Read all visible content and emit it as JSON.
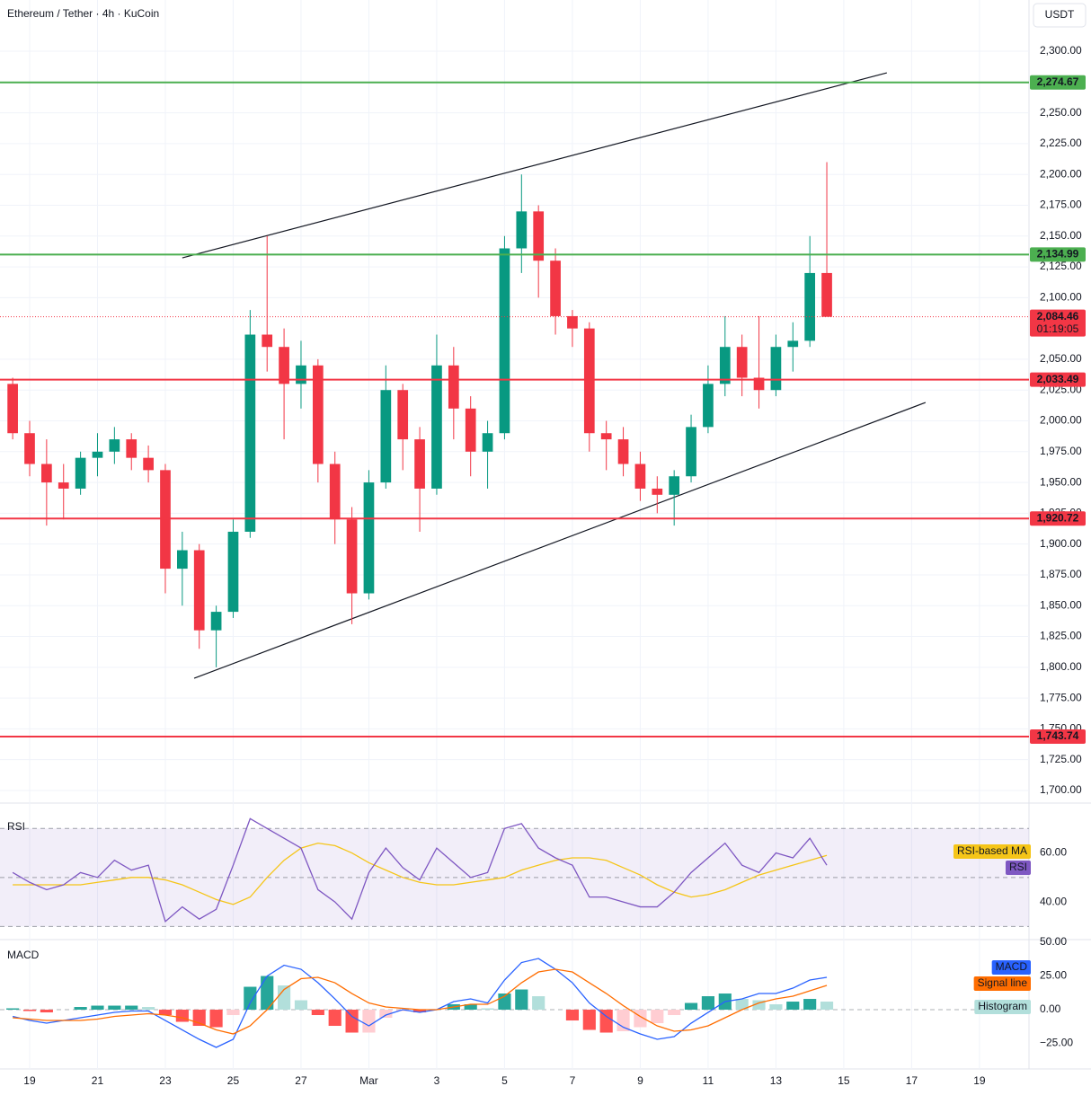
{
  "chart_data": [
    {
      "type": "candlestick",
      "title": "Ethereum / Tether · 4h · KuCoin",
      "currency": "USDT",
      "up_color": "#089981",
      "down_color": "#f23645",
      "x": [
        -0.5,
        0,
        0.5,
        1,
        1.5,
        2,
        2.5,
        3,
        3.5,
        4,
        4.5,
        5,
        5.5,
        6,
        6.5,
        7,
        7.5,
        8,
        8.5,
        9,
        9.5,
        10,
        10.5,
        11,
        11.5,
        12,
        12.5,
        13,
        13.5,
        14,
        14.5,
        15,
        15.5,
        16,
        16.5,
        17,
        17.5,
        18,
        18.5,
        19,
        19.5,
        20,
        20.5,
        21,
        21.5,
        22,
        22.5,
        23,
        23.5
      ],
      "open": [
        2030,
        1990,
        1965,
        1950,
        1945,
        1970,
        1975,
        1985,
        1970,
        1960,
        1880,
        1895,
        1830,
        1845,
        1910,
        2070,
        2060,
        2030,
        2045,
        1965,
        1920,
        1860,
        1950,
        2025,
        1985,
        1945,
        2045,
        2010,
        1975,
        1990,
        2140,
        2170,
        2130,
        2085,
        2075,
        1990,
        1985,
        1965,
        1945,
        1940,
        1955,
        1995,
        2030,
        2060,
        2035,
        2025,
        2060,
        2065,
        2120
      ],
      "high": [
        2035,
        2000,
        1985,
        1965,
        1975,
        1990,
        1995,
        1990,
        1980,
        1965,
        1910,
        1900,
        1850,
        1920,
        2090,
        2150,
        2075,
        2065,
        2050,
        1975,
        1930,
        1960,
        2045,
        2030,
        1995,
        2070,
        2060,
        2020,
        2000,
        2150,
        2200,
        2175,
        2140,
        2090,
        2080,
        2000,
        1995,
        1975,
        1955,
        1960,
        2005,
        2045,
        2085,
        2070,
        2085,
        2070,
        2080,
        2150,
        2210
      ],
      "low": [
        1985,
        1955,
        1915,
        1920,
        1940,
        1955,
        1965,
        1960,
        1950,
        1860,
        1850,
        1815,
        1800,
        1840,
        1905,
        2040,
        1985,
        2010,
        1950,
        1900,
        1835,
        1855,
        1945,
        1960,
        1910,
        1940,
        1985,
        1955,
        1945,
        1985,
        2120,
        2100,
        2070,
        2060,
        1975,
        1960,
        1955,
        1935,
        1925,
        1915,
        1950,
        1990,
        2020,
        2020,
        2010,
        2020,
        2040,
        2060,
        2085
      ],
      "close": [
        1990,
        1965,
        1950,
        1945,
        1970,
        1975,
        1985,
        1970,
        1960,
        1880,
        1895,
        1830,
        1845,
        1910,
        2070,
        2060,
        2030,
        2045,
        1965,
        1920,
        1860,
        1950,
        2025,
        1985,
        1945,
        2045,
        2010,
        1975,
        1990,
        2140,
        2170,
        2130,
        2085,
        2075,
        1990,
        1985,
        1965,
        1945,
        1940,
        1955,
        1995,
        2030,
        2060,
        2035,
        2025,
        2060,
        2065,
        2120,
        2084.46
      ],
      "xlim": [
        -0.874,
        29.46
      ],
      "xticks": [
        {
          "value": 0,
          "label": "19"
        },
        {
          "value": 2,
          "label": "21"
        },
        {
          "value": 4,
          "label": "23"
        },
        {
          "value": 6,
          "label": "25"
        },
        {
          "value": 8,
          "label": "27"
        },
        {
          "value": 10,
          "label": "Mar"
        },
        {
          "value": 12,
          "label": "3"
        },
        {
          "value": 14,
          "label": "5"
        },
        {
          "value": 16,
          "label": "7"
        },
        {
          "value": 18,
          "label": "9"
        },
        {
          "value": 20,
          "label": "11"
        },
        {
          "value": 22,
          "label": "13"
        },
        {
          "value": 24,
          "label": "15"
        },
        {
          "value": 26,
          "label": "17"
        },
        {
          "value": 28,
          "label": "19"
        }
      ],
      "ylim": [
        1690.5,
        2341.6
      ],
      "yticks": [
        {
          "value": 2300,
          "label": "2,300.00"
        },
        {
          "value": 2250,
          "label": "2,250.00"
        },
        {
          "value": 2225,
          "label": "2,225.00"
        },
        {
          "value": 2200,
          "label": "2,200.00"
        },
        {
          "value": 2175,
          "label": "2,175.00"
        },
        {
          "value": 2150,
          "label": "2,150.00"
        },
        {
          "value": 2125,
          "label": "2,125.00"
        },
        {
          "value": 2100,
          "label": "2,100.00"
        },
        {
          "value": 2050,
          "label": "2,050.00"
        },
        {
          "value": 2025,
          "label": "2,025.00"
        },
        {
          "value": 2000,
          "label": "2,000.00"
        },
        {
          "value": 1975,
          "label": "1,975.00"
        },
        {
          "value": 1950,
          "label": "1,950.00"
        },
        {
          "value": 1925,
          "label": "1,925.00"
        },
        {
          "value": 1900,
          "label": "1,900.00"
        },
        {
          "value": 1875,
          "label": "1,875.00"
        },
        {
          "value": 1850,
          "label": "1,850.00"
        },
        {
          "value": 1825,
          "label": "1,825.00"
        },
        {
          "value": 1800,
          "label": "1,800.00"
        },
        {
          "value": 1775,
          "label": "1,775.00"
        },
        {
          "value": 1750,
          "label": "1,750.00"
        },
        {
          "value": 1725,
          "label": "1,725.00"
        },
        {
          "value": 1700,
          "label": "1,700.00"
        }
      ],
      "grid": true,
      "levels": [
        {
          "value": 2274.67,
          "label": "2,274.67",
          "color": "#4caf50"
        },
        {
          "value": 2134.99,
          "label": "2,134.99",
          "color": "#4caf50"
        },
        {
          "value": 2033.49,
          "label": "2,033.49",
          "color": "#f23645"
        },
        {
          "value": 1920.72,
          "label": "1,920.72",
          "color": "#f23645"
        },
        {
          "value": 1743.74,
          "label": "1,743.74",
          "color": "#f23645"
        }
      ],
      "last": {
        "value": 2084.46,
        "label": "2,084.46",
        "countdown": "01:19:05",
        "color": "#f23645"
      },
      "trendlines": [
        {
          "start": [
            4.5,
            2132.3
          ],
          "end": [
            25.27,
            2282.5
          ],
          "color": "#131722"
        },
        {
          "start": [
            4.85,
            1791.1
          ],
          "end": [
            26.41,
            2014.9
          ],
          "color": "#131722"
        }
      ]
    },
    {
      "type": "line",
      "title": "RSI",
      "x": [
        -0.5,
        0,
        0.5,
        1,
        1.5,
        2,
        2.5,
        3,
        3.5,
        4,
        4.5,
        5,
        5.5,
        6,
        6.5,
        7,
        7.5,
        8,
        8.5,
        9,
        9.5,
        10,
        10.5,
        11,
        11.5,
        12,
        12.5,
        13,
        13.5,
        14,
        14.5,
        15,
        15.5,
        16,
        16.5,
        17,
        17.5,
        18,
        18.5,
        19,
        19.5,
        20,
        20.5,
        21,
        21.5,
        22,
        22.5,
        23,
        23.5
      ],
      "series": [
        {
          "name": "RSI-based MA",
          "color": "#f5c518",
          "values": [
            47,
            47,
            47,
            47,
            47,
            48,
            49,
            50,
            50,
            49,
            47,
            44,
            41,
            39,
            42,
            50,
            57,
            62,
            64,
            63,
            60,
            56,
            53,
            50,
            48,
            47,
            47,
            48,
            49,
            50,
            53,
            55,
            57,
            58,
            58,
            57,
            54,
            51,
            47,
            44,
            42,
            43,
            45,
            48,
            51,
            53,
            55,
            57,
            59
          ]
        },
        {
          "name": "RSI",
          "color": "#7e57c2",
          "values": [
            52,
            48,
            45,
            47,
            52,
            50,
            57,
            53,
            55,
            32,
            38,
            33,
            37,
            55,
            74,
            70,
            66,
            62,
            45,
            40,
            33,
            52,
            62,
            54,
            49,
            62,
            56,
            50,
            52,
            70,
            72,
            62,
            58,
            55,
            42,
            42,
            40,
            38,
            38,
            44,
            52,
            58,
            64,
            55,
            52,
            60,
            58,
            66,
            55
          ]
        }
      ],
      "xlim": [
        -0.874,
        29.46
      ],
      "ylim": [
        25,
        80
      ],
      "yticks": [
        {
          "value": 60,
          "label": "60.00"
        },
        {
          "value": 40,
          "label": "40.00"
        }
      ],
      "bands": [
        70,
        50,
        30
      ],
      "band_color": "#7e57c2"
    },
    {
      "type": "macd",
      "title": "MACD",
      "x": [
        -0.5,
        0,
        0.5,
        1,
        1.5,
        2,
        2.5,
        3,
        3.5,
        4,
        4.5,
        5,
        5.5,
        6,
        6.5,
        7,
        7.5,
        8,
        8.5,
        9,
        9.5,
        10,
        10.5,
        11,
        11.5,
        12,
        12.5,
        13,
        13.5,
        14,
        14.5,
        15,
        15.5,
        16,
        16.5,
        17,
        17.5,
        18,
        18.5,
        19,
        19.5,
        20,
        20.5,
        21,
        21.5,
        22,
        22.5,
        23,
        23.5
      ],
      "series": [
        {
          "name": "MACD",
          "color": "#2962ff",
          "values": [
            -5,
            -8,
            -10,
            -8,
            -6,
            -4,
            -2,
            -1,
            -1,
            -8,
            -15,
            -22,
            -28,
            -22,
            5,
            25,
            33,
            30,
            20,
            8,
            -5,
            -12,
            -4,
            0,
            -2,
            0,
            6,
            8,
            5,
            22,
            35,
            38,
            30,
            20,
            5,
            -5,
            -13,
            -18,
            -22,
            -20,
            -10,
            -2,
            6,
            8,
            12,
            12,
            16,
            22,
            24
          ]
        },
        {
          "name": "Signal line",
          "color": "#ff6d00",
          "values": [
            -6,
            -7,
            -8,
            -8,
            -8,
            -7,
            -5,
            -4,
            -3,
            -4,
            -6,
            -10,
            -15,
            -18,
            -12,
            0,
            15,
            23,
            24,
            20,
            12,
            5,
            2,
            1,
            0,
            0,
            2,
            4,
            4,
            10,
            20,
            28,
            30,
            28,
            20,
            12,
            3,
            -5,
            -12,
            -16,
            -15,
            -12,
            -6,
            0,
            5,
            8,
            10,
            14,
            18
          ]
        },
        {
          "name": "Histogram",
          "color": "#b2dfdb",
          "values": [
            1,
            -1,
            -2,
            0,
            2,
            3,
            3,
            3,
            2,
            -4,
            -9,
            -12,
            -13,
            -4,
            17,
            25,
            18,
            7,
            -4,
            -12,
            -17,
            -17,
            -6,
            -1,
            -2,
            0,
            4,
            4,
            1,
            12,
            15,
            10,
            0,
            -8,
            -15,
            -17,
            -16,
            -13,
            -10,
            -4,
            5,
            10,
            12,
            8,
            7,
            4,
            6,
            8,
            6
          ]
        }
      ],
      "histogram_colors": {
        "rising_above": "#26a69a",
        "falling_above": "#b2dfdb",
        "rising_below": "#ffcdd2",
        "falling_below": "#ff5252"
      },
      "xlim": [
        -0.874,
        29.46
      ],
      "ylim": [
        -44,
        52.7
      ],
      "yticks": [
        {
          "value": 50,
          "label": "50.00"
        },
        {
          "value": 25,
          "label": "25.00"
        },
        {
          "value": 0,
          "label": "0.00"
        },
        {
          "value": -25,
          "label": "−25.00"
        }
      ]
    }
  ]
}
